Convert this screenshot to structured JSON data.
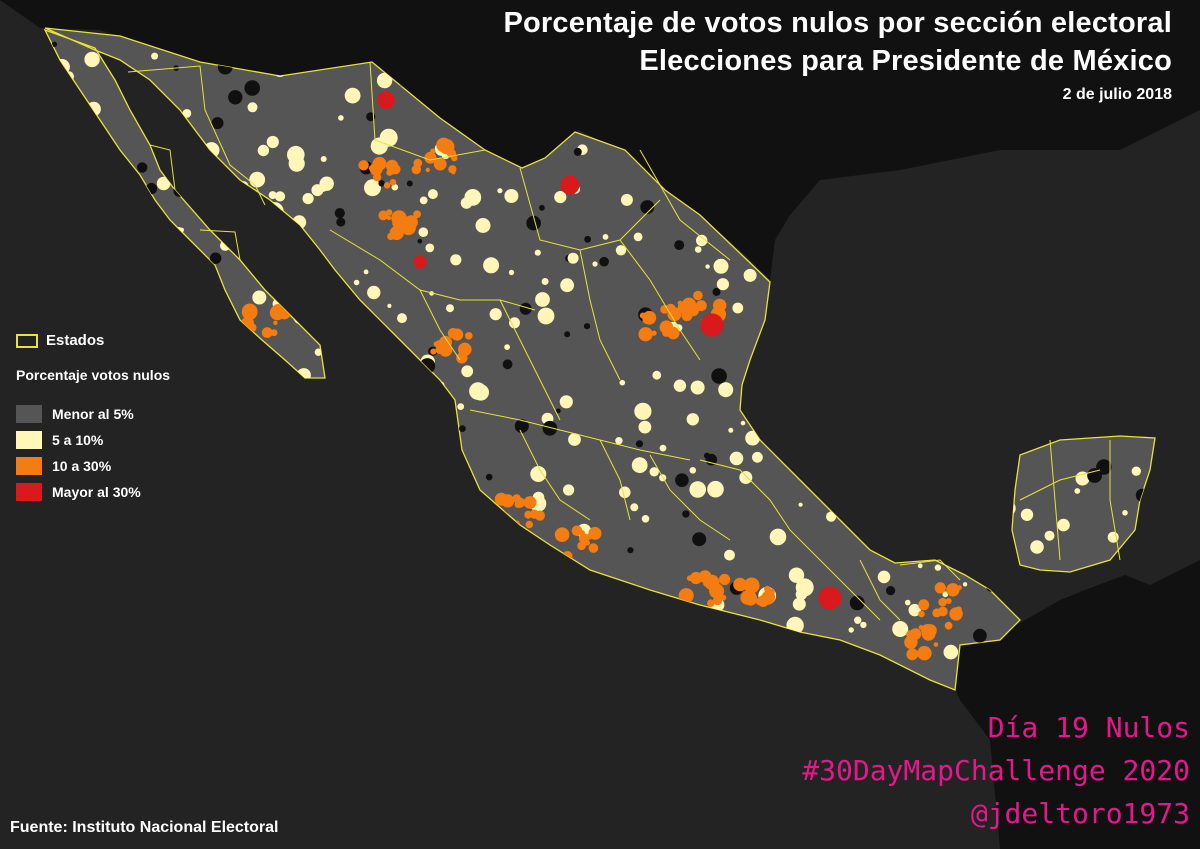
{
  "title": {
    "line1": "Porcentaje de votos nulos por sección electoral",
    "line2": "Elecciones para Presidente de México",
    "date": "2 de julio 2018"
  },
  "legend": {
    "states_label": "Estados",
    "title": "Porcentaje votos nulos",
    "items": [
      {
        "label": "Menor al 5%",
        "color": "#555555"
      },
      {
        "label": "5 a 10%",
        "color": "#fff6b8"
      },
      {
        "label": "10 a 30%",
        "color": "#f47c10"
      },
      {
        "label": "Mayor al 30%",
        "color": "#d9191b"
      }
    ]
  },
  "challenge": {
    "line1": "Día 19 Nulos",
    "line2": "#30DayMapChallenge 2020",
    "line3": "@jdeltoro1973"
  },
  "source": "Fuente: Instituto Nacional Electoral",
  "colors": {
    "background": "#232323",
    "land_outside": "#111111",
    "state_border": "#e8e23a",
    "challenge_text": "#e3198b"
  }
}
